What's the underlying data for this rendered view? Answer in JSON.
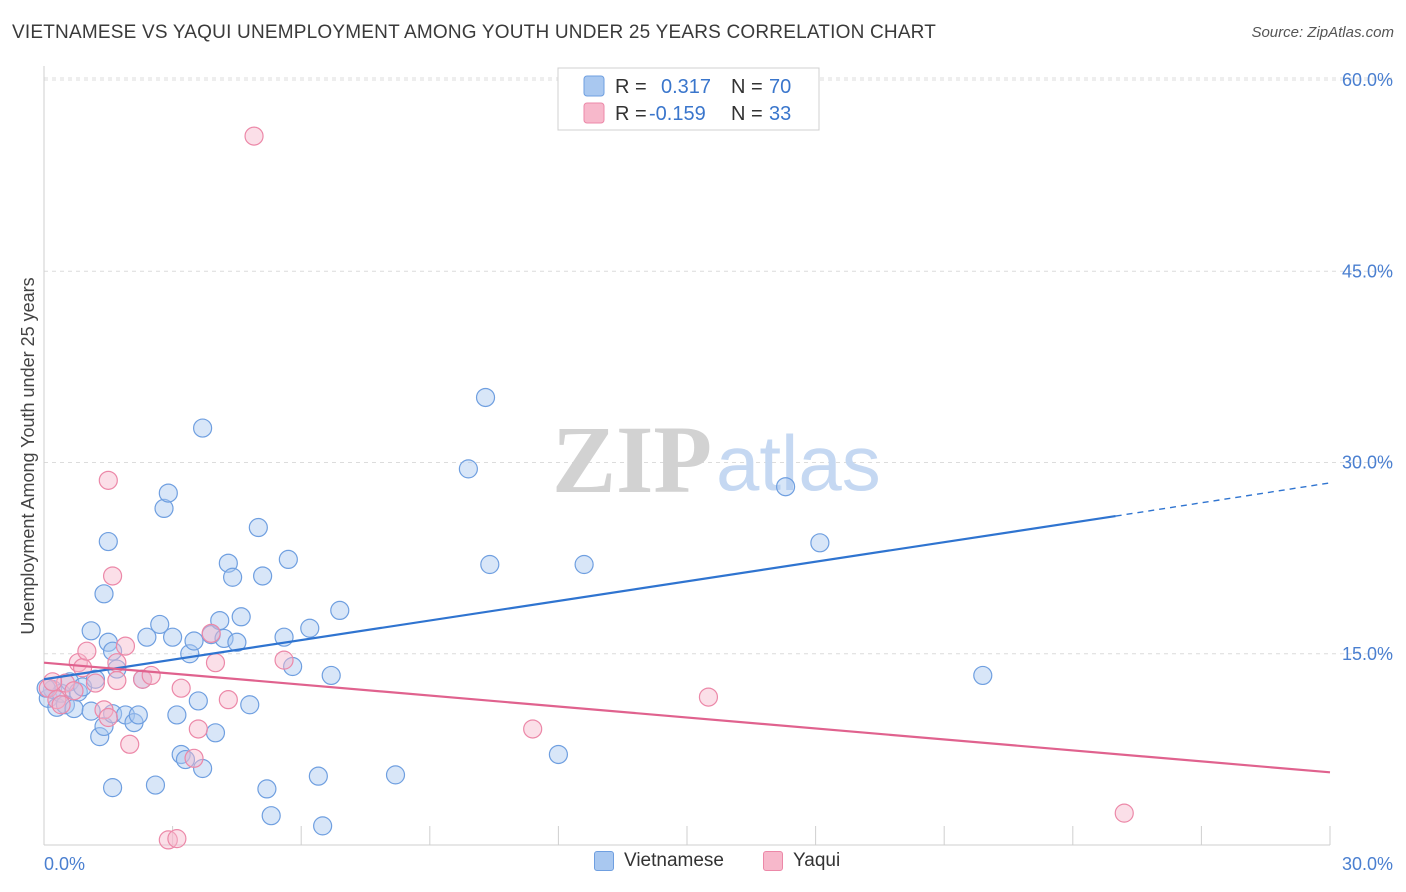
{
  "title": "VIETNAMESE VS YAQUI UNEMPLOYMENT AMONG YOUTH UNDER 25 YEARS CORRELATION CHART",
  "source": "Source: ZipAtlas.com",
  "watermark": {
    "part1": "ZIP",
    "part2": "atlas"
  },
  "colors": {
    "blue_fill": "#a9c8f0",
    "blue_stroke": "#6f9fe0",
    "blue_line": "#2f74d0",
    "pink_fill": "#f7b8cb",
    "pink_stroke": "#ec88a8",
    "pink_line": "#e0628e",
    "tick_text": "#4a7fd0",
    "grid": "#dcdcdc"
  },
  "legend": {
    "rows": [
      {
        "r_label": "R =",
        "r_value": "0.317",
        "n_label": "N =",
        "n_value": "70"
      },
      {
        "r_label": "R =",
        "r_value": "-0.159",
        "n_label": "N =",
        "n_value": "33"
      }
    ],
    "position": "top-center"
  },
  "chart_data": {
    "type": "scatter",
    "ylabel": "Unemployment Among Youth under 25 years",
    "xlim": [
      0,
      30
    ],
    "ylim": [
      0,
      60
    ],
    "x_tick_labels": [
      {
        "value": 0,
        "label": "0.0%"
      },
      {
        "value": 30,
        "label": "30.0%"
      }
    ],
    "y_tick_labels": [
      {
        "value": 15,
        "label": "15.0%"
      },
      {
        "value": 30,
        "label": "30.0%"
      },
      {
        "value": 45,
        "label": "45.0%"
      },
      {
        "value": 60,
        "label": "60.0%"
      }
    ],
    "grid": true,
    "series": [
      {
        "name": "Vietnamese",
        "color_key": "blue",
        "trend": {
          "x": [
            0,
            25
          ],
          "y": [
            13.0,
            25.8
          ],
          "dashed_extension": {
            "x": [
              25,
              30
            ],
            "y": [
              25.8,
              28.4
            ]
          }
        },
        "points": [
          [
            0.1,
            11.5
          ],
          [
            0.2,
            12.2
          ],
          [
            0.3,
            10.8
          ],
          [
            0.4,
            11.9
          ],
          [
            0.5,
            11.0
          ],
          [
            0.6,
            12.8
          ],
          [
            0.7,
            10.7
          ],
          [
            0.8,
            12.0
          ],
          [
            0.9,
            12.4
          ],
          [
            1.1,
            10.5
          ],
          [
            1.1,
            16.8
          ],
          [
            1.2,
            13.0
          ],
          [
            1.3,
            8.5
          ],
          [
            1.4,
            9.3
          ],
          [
            1.4,
            19.7
          ],
          [
            1.5,
            23.8
          ],
          [
            1.5,
            15.9
          ],
          [
            1.6,
            15.2
          ],
          [
            1.6,
            10.3
          ],
          [
            1.7,
            13.8
          ],
          [
            1.6,
            4.5
          ],
          [
            1.9,
            10.2
          ],
          [
            2.1,
            9.6
          ],
          [
            2.2,
            10.2
          ],
          [
            2.3,
            13.0
          ],
          [
            2.4,
            16.3
          ],
          [
            2.6,
            4.7
          ],
          [
            2.7,
            17.3
          ],
          [
            2.8,
            26.4
          ],
          [
            2.9,
            27.6
          ],
          [
            3.0,
            16.3
          ],
          [
            3.1,
            10.2
          ],
          [
            3.2,
            7.1
          ],
          [
            3.3,
            6.7
          ],
          [
            3.4,
            15.0
          ],
          [
            3.5,
            16.0
          ],
          [
            3.6,
            11.3
          ],
          [
            3.7,
            6.0
          ],
          [
            3.7,
            32.7
          ],
          [
            3.9,
            16.5
          ],
          [
            4.0,
            8.8
          ],
          [
            4.1,
            17.6
          ],
          [
            4.2,
            16.2
          ],
          [
            4.3,
            22.1
          ],
          [
            4.4,
            21.0
          ],
          [
            4.5,
            15.9
          ],
          [
            4.6,
            17.9
          ],
          [
            4.8,
            11.0
          ],
          [
            5.0,
            24.9
          ],
          [
            5.1,
            21.1
          ],
          [
            5.2,
            4.4
          ],
          [
            5.3,
            2.3
          ],
          [
            5.6,
            16.3
          ],
          [
            5.7,
            22.4
          ],
          [
            5.8,
            14.0
          ],
          [
            6.2,
            17.0
          ],
          [
            6.4,
            5.4
          ],
          [
            6.5,
            1.5
          ],
          [
            6.7,
            13.3
          ],
          [
            6.9,
            18.4
          ],
          [
            8.2,
            5.5
          ],
          [
            9.9,
            29.5
          ],
          [
            10.3,
            35.1
          ],
          [
            10.4,
            22.0
          ],
          [
            12.0,
            7.1
          ],
          [
            12.6,
            22.0
          ],
          [
            17.3,
            28.1
          ],
          [
            18.1,
            23.7
          ],
          [
            21.9,
            13.3
          ],
          [
            0.05,
            12.3
          ]
        ]
      },
      {
        "name": "Yaqui",
        "color_key": "pink",
        "trend": {
          "x": [
            0,
            30
          ],
          "y": [
            14.3,
            5.7
          ]
        },
        "points": [
          [
            0.1,
            12.3
          ],
          [
            0.3,
            11.4
          ],
          [
            0.4,
            11.0
          ],
          [
            0.5,
            12.7
          ],
          [
            0.7,
            12.1
          ],
          [
            0.8,
            14.3
          ],
          [
            0.9,
            13.9
          ],
          [
            1.0,
            15.2
          ],
          [
            1.2,
            12.7
          ],
          [
            1.4,
            10.6
          ],
          [
            1.5,
            10.0
          ],
          [
            1.5,
            28.6
          ],
          [
            1.6,
            21.1
          ],
          [
            1.7,
            12.9
          ],
          [
            1.7,
            14.3
          ],
          [
            1.9,
            15.6
          ],
          [
            2.0,
            7.9
          ],
          [
            2.3,
            13.0
          ],
          [
            2.5,
            13.3
          ],
          [
            2.9,
            0.4
          ],
          [
            3.1,
            0.5
          ],
          [
            3.2,
            12.3
          ],
          [
            3.5,
            6.8
          ],
          [
            3.6,
            9.1
          ],
          [
            3.9,
            16.6
          ],
          [
            4.0,
            14.3
          ],
          [
            4.3,
            11.4
          ],
          [
            4.9,
            55.6
          ],
          [
            5.6,
            14.5
          ],
          [
            11.4,
            9.1
          ],
          [
            15.5,
            11.6
          ],
          [
            25.2,
            2.5
          ],
          [
            0.2,
            12.8
          ]
        ]
      }
    ]
  },
  "bottom_legend": [
    {
      "label": "Vietnamese",
      "color_key": "blue"
    },
    {
      "label": "Yaqui",
      "color_key": "pink"
    }
  ]
}
